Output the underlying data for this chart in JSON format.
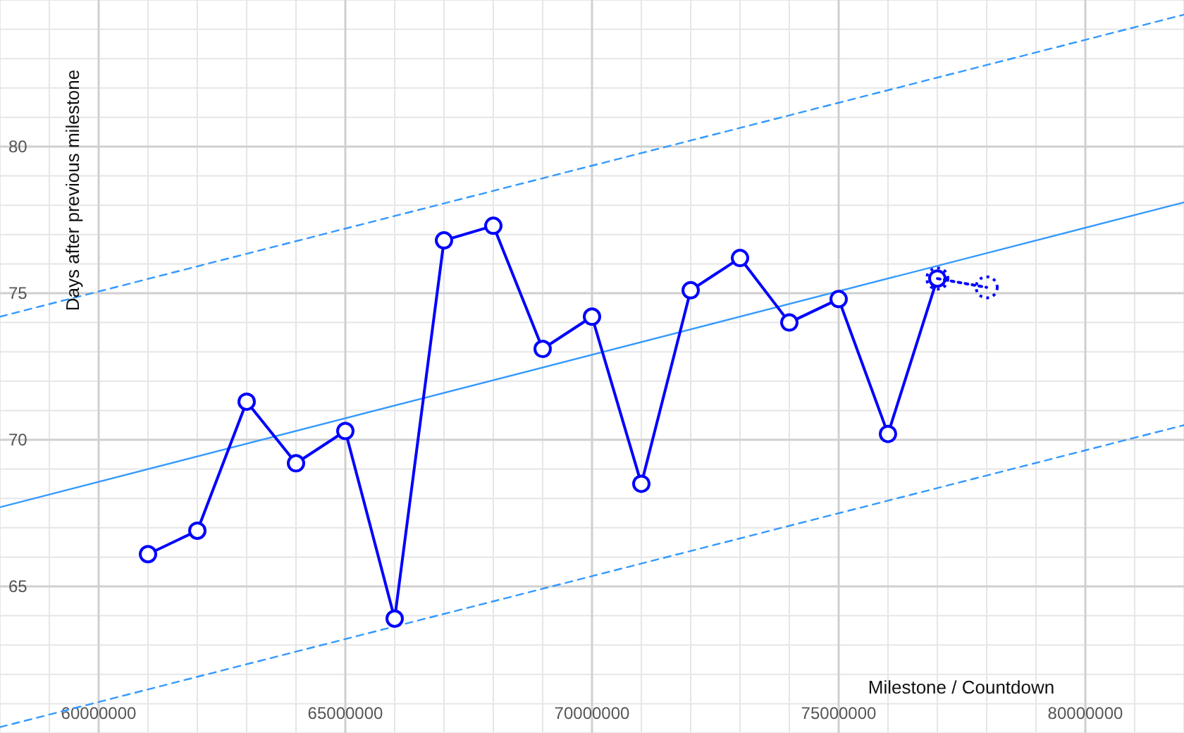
{
  "chart_data": {
    "type": "line",
    "xlabel": "Milestone / Countdown",
    "ylabel": "Days after previous milestone",
    "xlim": [
      58000000,
      82000000
    ],
    "ylim": [
      60,
      85
    ],
    "xticks": [
      60000000,
      65000000,
      70000000,
      75000000,
      80000000
    ],
    "yticks": [
      65,
      70,
      75,
      80
    ],
    "grid": true,
    "marker": "circle",
    "line_style": "solid",
    "series": [
      {
        "color": "#3399ff",
        "x": [
          58000000,
          82000000
        ],
        "values": [
          67.7,
          78.1
        ],
        "marker": "none"
      },
      {
        "color": "#3399ff",
        "x": [
          58000000,
          82000000
        ],
        "values": [
          74.2,
          84.5
        ],
        "marker": "none",
        "line_style": "dashed"
      },
      {
        "color": "#3399ff",
        "x": [
          58000000,
          82000000
        ],
        "values": [
          60.2,
          70.5
        ],
        "marker": "none",
        "line_style": "dashed"
      },
      {
        "color": "#0000ff",
        "x": [
          61000000,
          62000000,
          63000000,
          64000000,
          65000000,
          66000000,
          67000000,
          68000000,
          69000000,
          70000000,
          71000000,
          72000000,
          73000000,
          74000000,
          75000000,
          76000000,
          77000000
        ],
        "values": [
          66.1,
          66.9,
          71.3,
          69.2,
          70.3,
          63.9,
          76.8,
          77.3,
          73.1,
          74.2,
          68.5,
          75.1,
          76.2,
          74.0,
          74.8,
          70.2,
          75.5
        ]
      },
      {
        "color": "#0000ff",
        "x": [
          77000000,
          78000000
        ],
        "values": [
          75.5,
          75.2
        ],
        "line_style": "dotted"
      }
    ]
  }
}
